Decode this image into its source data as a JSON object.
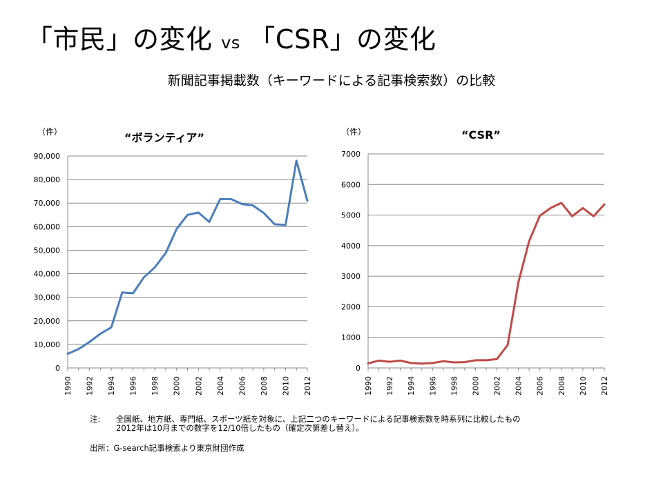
{
  "slide": {
    "title_a": "「市民」の変化",
    "title_vs": "vs",
    "title_b": "「CSR」の変化",
    "subtitle": "新聞記事掲載数（キーワードによる記事検索数）の比較"
  },
  "notes": {
    "label": "注:",
    "line1": "全国紙、地方紙、専門紙、スポーツ紙を対象に、上記二つのキーワードによる記事検索数を時系列に比較したもの",
    "line2": "2012年は10月までの数字を12/10倍したもの（確定次第差し替え）。",
    "source": "出所：G-search記事検索より東京財団作成"
  },
  "colors": {
    "volunteer_line": "#4a7ebb",
    "csr_line": "#be4b48",
    "grid": "#878787"
  },
  "chart_data": [
    {
      "type": "line",
      "title": "“ボランティア”",
      "unit_label": "（件）",
      "x": [
        1990,
        1991,
        1992,
        1993,
        1994,
        1995,
        1996,
        1997,
        1998,
        1999,
        2000,
        2001,
        2002,
        2003,
        2004,
        2005,
        2006,
        2007,
        2008,
        2009,
        2010,
        2011,
        2012
      ],
      "x_tick_labels": [
        "1990",
        "1992",
        "1994",
        "1996",
        "1998",
        "2000",
        "2002",
        "2004",
        "2006",
        "2008",
        "2010",
        "2012"
      ],
      "series": [
        {
          "values": [
            6000,
            8000,
            11000,
            14500,
            17200,
            32000,
            31700,
            38500,
            42700,
            48800,
            59000,
            65000,
            66000,
            62000,
            71700,
            71700,
            69600,
            69000,
            65800,
            61000,
            60700,
            88000,
            71000
          ]
        }
      ],
      "ylim": [
        0,
        90000
      ],
      "y_tick_labels": [
        "0",
        "10,000",
        "20,000",
        "30,000",
        "40,000",
        "50,000",
        "60,000",
        "70,000",
        "80,000",
        "90,000"
      ],
      "grid": true,
      "legend": "none"
    },
    {
      "type": "line",
      "title": "“CSR”",
      "unit_label": "（件）",
      "x": [
        1990,
        1991,
        1992,
        1993,
        1994,
        1995,
        1996,
        1997,
        1998,
        1999,
        2000,
        2001,
        2002,
        2003,
        2004,
        2005,
        2006,
        2007,
        2008,
        2009,
        2010,
        2011,
        2012
      ],
      "x_tick_labels": [
        "1990",
        "1992",
        "1994",
        "1996",
        "1998",
        "2000",
        "2002",
        "2004",
        "2006",
        "2008",
        "2010",
        "2012"
      ],
      "series": [
        {
          "values": [
            150,
            240,
            200,
            240,
            160,
            140,
            160,
            220,
            180,
            190,
            250,
            250,
            290,
            750,
            2800,
            4150,
            4980,
            5230,
            5400,
            4960,
            5230,
            4960,
            5350
          ]
        }
      ],
      "ylim": [
        0,
        7000
      ],
      "y_tick_labels": [
        "0",
        "1000",
        "2000",
        "3000",
        "4000",
        "5000",
        "6000",
        "7000"
      ],
      "grid": true,
      "legend": "none"
    }
  ]
}
